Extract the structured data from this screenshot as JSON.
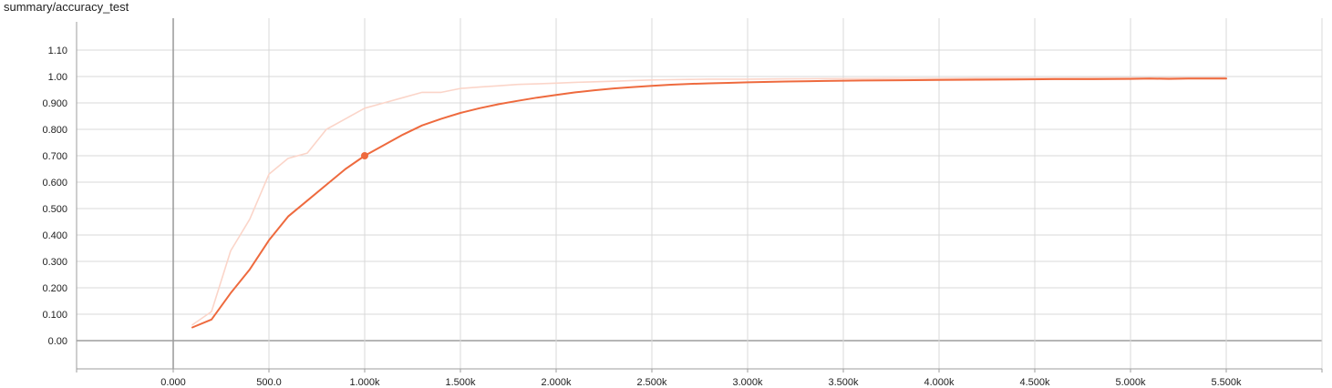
{
  "chart_data": {
    "type": "line",
    "title": "summary/accuracy_test",
    "xlabel": "",
    "ylabel": "",
    "xlim": [
      -500,
      5500
    ],
    "ylim": [
      -0.1,
      1.15
    ],
    "grid": true,
    "x_ticks": [
      {
        "value": 0,
        "label": "0.000"
      },
      {
        "value": 500,
        "label": "500.0"
      },
      {
        "value": 1000,
        "label": "1.000k"
      },
      {
        "value": 1500,
        "label": "1.500k"
      },
      {
        "value": 2000,
        "label": "2.000k"
      },
      {
        "value": 2500,
        "label": "2.500k"
      },
      {
        "value": 3000,
        "label": "3.000k"
      },
      {
        "value": 3500,
        "label": "3.500k"
      },
      {
        "value": 4000,
        "label": "4.000k"
      },
      {
        "value": 4500,
        "label": "4.500k"
      },
      {
        "value": 5000,
        "label": "5.000k"
      },
      {
        "value": 5500,
        "label": "5.500k"
      }
    ],
    "y_ticks": [
      {
        "value": 0.0,
        "label": "0.00"
      },
      {
        "value": 0.1,
        "label": "0.100"
      },
      {
        "value": 0.2,
        "label": "0.200"
      },
      {
        "value": 0.3,
        "label": "0.300"
      },
      {
        "value": 0.4,
        "label": "0.400"
      },
      {
        "value": 0.5,
        "label": "0.500"
      },
      {
        "value": 0.6,
        "label": "0.600"
      },
      {
        "value": 0.7,
        "label": "0.700"
      },
      {
        "value": 0.8,
        "label": "0.800"
      },
      {
        "value": 0.9,
        "label": "0.900"
      },
      {
        "value": 1.0,
        "label": "1.00"
      },
      {
        "value": 1.1,
        "label": "1.10"
      }
    ],
    "series": [
      {
        "role": "raw",
        "color": "#fbd5c9",
        "points": [
          [
            100,
            0.06
          ],
          [
            200,
            0.11
          ],
          [
            300,
            0.34
          ],
          [
            400,
            0.46
          ],
          [
            500,
            0.63
          ],
          [
            600,
            0.69
          ],
          [
            700,
            0.71
          ],
          [
            800,
            0.8
          ],
          [
            900,
            0.84
          ],
          [
            1000,
            0.88
          ],
          [
            1100,
            0.9
          ],
          [
            1200,
            0.92
          ],
          [
            1300,
            0.94
          ],
          [
            1400,
            0.94
          ],
          [
            1500,
            0.955
          ],
          [
            1600,
            0.96
          ],
          [
            1700,
            0.965
          ],
          [
            1800,
            0.97
          ],
          [
            1900,
            0.972
          ],
          [
            2000,
            0.975
          ],
          [
            2100,
            0.978
          ],
          [
            2200,
            0.98
          ],
          [
            2300,
            0.982
          ],
          [
            2400,
            0.985
          ],
          [
            2500,
            0.987
          ],
          [
            2600,
            0.988
          ],
          [
            2700,
            0.989
          ],
          [
            2800,
            0.99
          ],
          [
            3000,
            0.99
          ],
          [
            3200,
            0.991
          ],
          [
            3400,
            0.992
          ],
          [
            3600,
            0.992
          ],
          [
            3800,
            0.993
          ],
          [
            4000,
            0.993
          ],
          [
            4200,
            0.994
          ],
          [
            4400,
            0.994
          ],
          [
            4600,
            0.994
          ],
          [
            4800,
            0.995
          ],
          [
            5000,
            0.995
          ],
          [
            5200,
            0.996
          ],
          [
            5400,
            0.996
          ],
          [
            5500,
            0.996
          ]
        ]
      },
      {
        "role": "smoothed",
        "color": "#ee6a3e",
        "points": [
          [
            100,
            0.05
          ],
          [
            200,
            0.08
          ],
          [
            300,
            0.18
          ],
          [
            400,
            0.27
          ],
          [
            500,
            0.38
          ],
          [
            600,
            0.47
          ],
          [
            700,
            0.53
          ],
          [
            800,
            0.59
          ],
          [
            900,
            0.65
          ],
          [
            1000,
            0.7
          ],
          [
            1100,
            0.74
          ],
          [
            1200,
            0.78
          ],
          [
            1300,
            0.815
          ],
          [
            1400,
            0.84
          ],
          [
            1500,
            0.862
          ],
          [
            1600,
            0.88
          ],
          [
            1700,
            0.895
          ],
          [
            1800,
            0.908
          ],
          [
            1900,
            0.92
          ],
          [
            2000,
            0.93
          ],
          [
            2100,
            0.94
          ],
          [
            2200,
            0.948
          ],
          [
            2300,
            0.955
          ],
          [
            2400,
            0.96
          ],
          [
            2500,
            0.965
          ],
          [
            2600,
            0.969
          ],
          [
            2700,
            0.972
          ],
          [
            2800,
            0.974
          ],
          [
            2900,
            0.976
          ],
          [
            3000,
            0.978
          ],
          [
            3200,
            0.981
          ],
          [
            3400,
            0.983
          ],
          [
            3600,
            0.985
          ],
          [
            3800,
            0.986
          ],
          [
            4000,
            0.987
          ],
          [
            4200,
            0.988
          ],
          [
            4400,
            0.989
          ],
          [
            4600,
            0.99
          ],
          [
            4800,
            0.99
          ],
          [
            5000,
            0.991
          ],
          [
            5100,
            0.992
          ],
          [
            5200,
            0.991
          ],
          [
            5300,
            0.992
          ],
          [
            5400,
            0.992
          ],
          [
            5500,
            0.992
          ]
        ]
      }
    ],
    "highlight_point": {
      "x": 1000,
      "y": 0.7,
      "color": "#ee6a3e"
    }
  }
}
